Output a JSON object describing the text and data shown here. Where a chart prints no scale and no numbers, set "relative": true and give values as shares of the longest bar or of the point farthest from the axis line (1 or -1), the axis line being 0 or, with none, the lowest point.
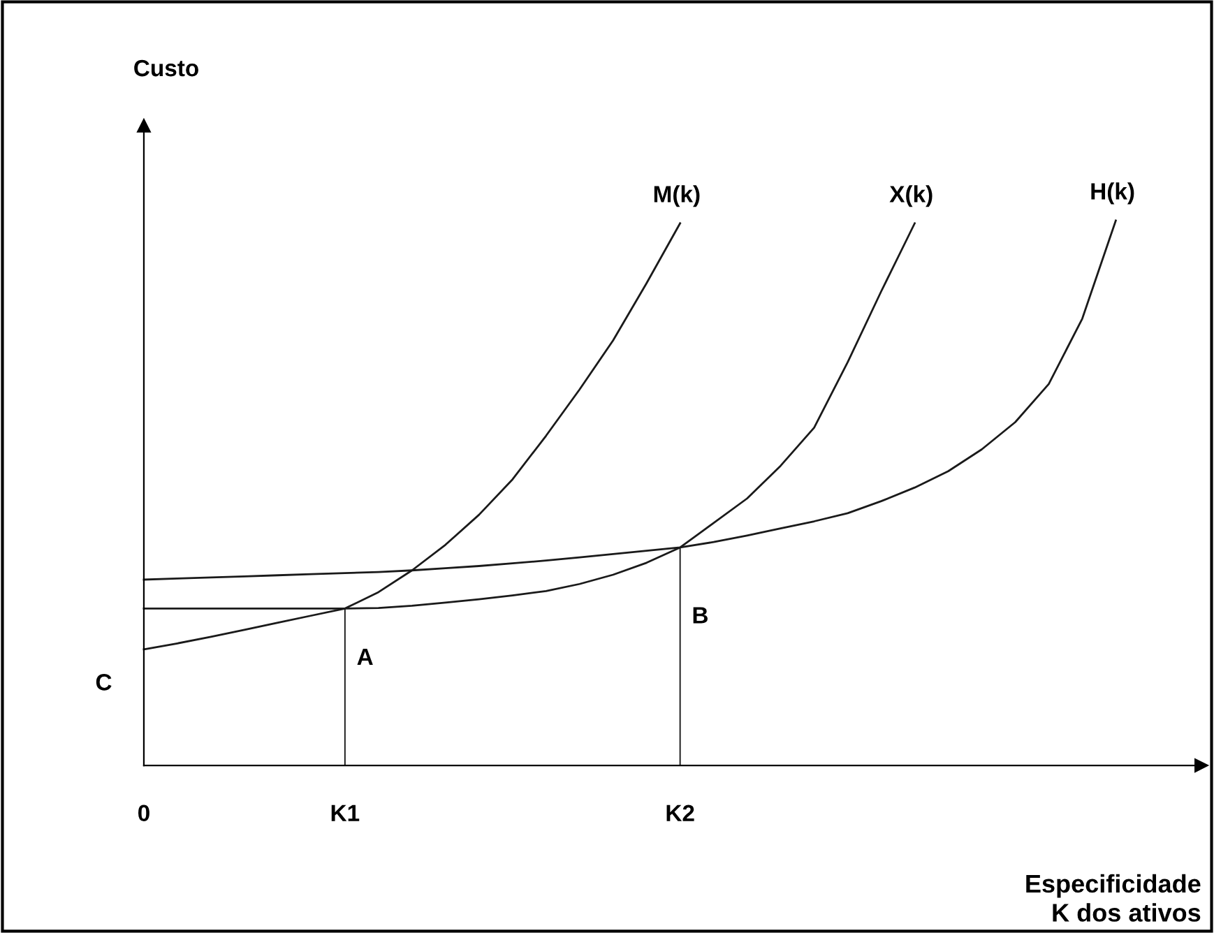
{
  "chart_data": {
    "type": "line",
    "relative": true,
    "xlabel": "Especificidade\nK dos ativos",
    "categories": [
      "0",
      null,
      null,
      null,
      null,
      null,
      "K1",
      null,
      null,
      null,
      null,
      null,
      null,
      null,
      null,
      null,
      "K2",
      null,
      null,
      null,
      null,
      null,
      null,
      null,
      null,
      null,
      null,
      null,
      null,
      null,
      null,
      null
    ],
    "tick_labels": "x",
    "grid": false,
    "legend": false,
    "marker": "none",
    "line_style": "solid",
    "series": [
      {
        "name": "M(k)",
        "color": "#1a1a1a",
        "values": [
          0.213,
          0.224,
          0.236,
          0.249,
          0.262,
          0.275,
          0.288,
          0.318,
          0.358,
          0.405,
          0.46,
          0.525,
          0.605,
          0.69,
          0.78,
          0.885,
          0.995,
          null,
          null,
          null,
          null,
          null,
          null,
          null,
          null,
          null,
          null,
          null,
          null,
          null,
          null,
          null
        ]
      },
      {
        "name": "X(k)",
        "color": "#1a1a1a",
        "values": [
          0.288,
          0.288,
          0.288,
          0.288,
          0.288,
          0.288,
          0.288,
          0.289,
          0.293,
          0.299,
          0.305,
          0.312,
          0.32,
          0.333,
          0.35,
          0.372,
          0.4,
          0.445,
          0.49,
          0.55,
          0.62,
          0.74,
          0.87,
          0.995,
          null,
          null,
          null,
          null,
          null,
          null,
          null,
          null
        ]
      },
      {
        "name": "H(k)",
        "color": "#1a1a1a",
        "values": [
          0.341,
          0.343,
          0.345,
          0.347,
          0.349,
          0.351,
          0.353,
          0.355,
          0.358,
          0.362,
          0.366,
          0.371,
          0.376,
          0.382,
          0.388,
          0.394,
          0.4,
          0.41,
          0.422,
          0.435,
          0.448,
          0.463,
          0.485,
          0.51,
          0.54,
          0.58,
          0.63,
          0.7,
          0.82,
          1.0,
          null,
          null
        ]
      },
      {
        "type": "bar",
        "color": "#1a1a1a",
        "values": [
          null,
          null,
          null,
          null,
          null,
          null,
          0.288,
          null,
          null,
          null,
          null,
          null,
          null,
          null,
          null,
          null,
          0.4,
          null,
          null,
          null,
          null,
          null,
          null,
          null,
          null,
          null,
          null,
          null,
          null,
          null,
          null,
          null
        ]
      }
    ],
    "annotations": [
      "A",
      "B",
      "C",
      "Custo"
    ]
  }
}
